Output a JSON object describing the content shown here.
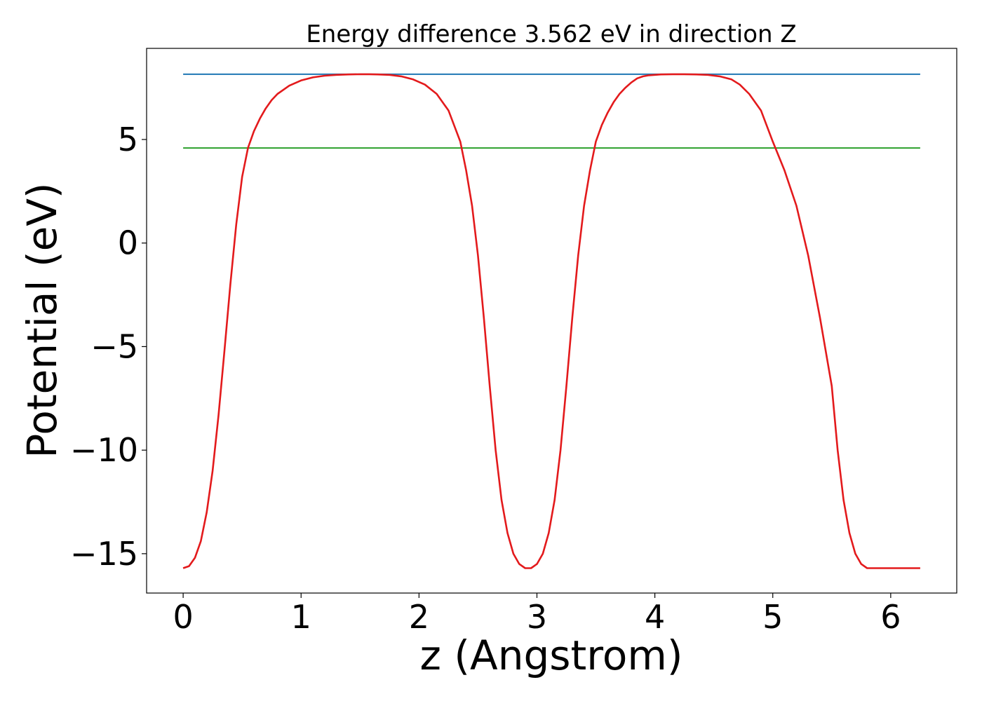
{
  "chart_data": {
    "type": "line",
    "title": "Energy difference 3.562 eV in direction Z",
    "xlabel": "z (Angstrom)",
    "ylabel": "Potential (eV)",
    "xlim": [
      -0.31,
      6.56
    ],
    "ylim": [
      -16.9,
      9.4
    ],
    "xticks": [
      0,
      1,
      2,
      3,
      4,
      5,
      6
    ],
    "xtick_labels": [
      "0",
      "1",
      "2",
      "3",
      "4",
      "5",
      "6"
    ],
    "yticks": [
      5,
      0,
      -5,
      -10,
      -15
    ],
    "ytick_labels": [
      "5",
      "0",
      "−5",
      "−10",
      "−15"
    ],
    "grid": false,
    "legend": false,
    "series": [
      {
        "color": "#1f77b4",
        "x": [
          0,
          6.25
        ],
        "y": [
          8.15,
          8.15
        ]
      },
      {
        "color": "#2ca02c",
        "x": [
          0,
          6.25
        ],
        "y": [
          4.59,
          4.59
        ]
      },
      {
        "color": "#e31a1c",
        "x": [
          0,
          0.05,
          0.1,
          0.15,
          0.2,
          0.25,
          0.3,
          0.35,
          0.4,
          0.45,
          0.5,
          0.55,
          0.6,
          0.65,
          0.7,
          0.75,
          0.8,
          0.9,
          1.0,
          1.1,
          1.2,
          1.3,
          1.4,
          1.5,
          1.58,
          1.65,
          1.75,
          1.85,
          1.95,
          2.05,
          2.15,
          2.25,
          2.35,
          2.4,
          2.45,
          2.5,
          2.55,
          2.6,
          2.65,
          2.7,
          2.75,
          2.8,
          2.85,
          2.9,
          2.95,
          3.0,
          3.05,
          3.1,
          3.15,
          3.2,
          3.25,
          3.3,
          3.35,
          3.4,
          3.45,
          3.5,
          3.55,
          3.6,
          3.65,
          3.7,
          3.75,
          3.8,
          3.85,
          3.9,
          3.95,
          4.05,
          4.15,
          4.25,
          4.35,
          4.45,
          4.55,
          4.65,
          4.72,
          4.8,
          4.9,
          5.0,
          5.1,
          5.2,
          5.3,
          5.4,
          5.5,
          5.55,
          5.6,
          5.65,
          5.7,
          5.75,
          5.8,
          5.85,
          5.9,
          5.95,
          6.0,
          6.05,
          6.1,
          6.15,
          6.2,
          6.25
        ],
        "y": [
          -15.7,
          -15.6,
          -15.2,
          -14.4,
          -13.0,
          -11.0,
          -8.3,
          -5.2,
          -2.0,
          0.9,
          3.2,
          4.6,
          5.4,
          6.0,
          6.5,
          6.9,
          7.2,
          7.6,
          7.85,
          8.0,
          8.08,
          8.12,
          8.14,
          8.15,
          8.15,
          8.14,
          8.12,
          8.05,
          7.9,
          7.65,
          7.2,
          6.4,
          4.9,
          3.5,
          1.8,
          -0.6,
          -3.6,
          -6.9,
          -10.0,
          -12.4,
          -14.0,
          -15.0,
          -15.5,
          -15.7,
          -15.7,
          -15.5,
          -15.0,
          -14.0,
          -12.4,
          -10.0,
          -6.9,
          -3.6,
          -0.6,
          1.8,
          3.5,
          4.9,
          5.7,
          6.3,
          6.8,
          7.2,
          7.5,
          7.75,
          7.95,
          8.05,
          8.1,
          8.14,
          8.15,
          8.15,
          8.14,
          8.12,
          8.05,
          7.9,
          7.65,
          7.2,
          6.4,
          4.9,
          3.5,
          1.8,
          -0.6,
          -3.6,
          -6.9,
          -10.0,
          -12.4,
          -14.0,
          -15.0,
          -15.5,
          -15.7,
          -15.7,
          -15.7,
          -15.7,
          -15.7,
          -15.7,
          -15.7,
          -15.7,
          -15.7,
          -15.7
        ]
      }
    ]
  }
}
